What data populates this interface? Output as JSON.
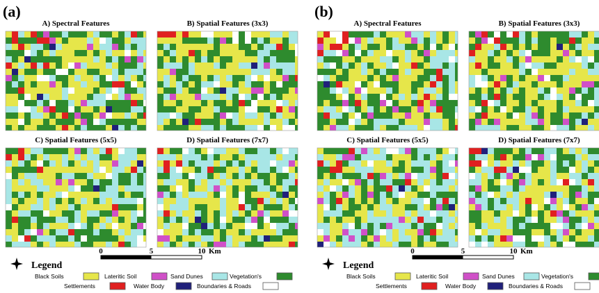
{
  "panels": [
    {
      "label": "(a)",
      "maps": [
        {
          "title": "A) Spectral Features"
        },
        {
          "title": "B) Spatial Features (3x3)"
        },
        {
          "title": "C) Spatial Features (5x5)"
        },
        {
          "title": "D) Spatial Features (7x7)"
        }
      ],
      "scale": {
        "ticks": [
          "0",
          "5",
          "10"
        ],
        "unit": "Km"
      },
      "legend": {
        "title": "Legend",
        "items": [
          {
            "label": "Black Soils",
            "color": "#e6e64a"
          },
          {
            "label": "Lateritic Soil",
            "color": "#d050c8"
          },
          {
            "label": "Sand Dunes",
            "color": "#a8e6e6"
          },
          {
            "label": "Vegetation's",
            "color": "#2e8b2e"
          },
          {
            "label": "Settlements",
            "color": "#e02020"
          },
          {
            "label": "Water Body",
            "color": "#20207a"
          },
          {
            "label": "Boundaries & Roads",
            "color": "#ffffff"
          }
        ]
      }
    },
    {
      "label": "(b)",
      "maps": [
        {
          "title": "A) Spectral Features"
        },
        {
          "title": "B) Spatial Features (3x3)"
        },
        {
          "title": "C) Spatial Features (5x5)"
        },
        {
          "title": "D) Spatial Features (7x7)"
        }
      ],
      "scale": {
        "ticks": [
          "0",
          "5",
          "10"
        ],
        "unit": "Km"
      },
      "legend": {
        "title": "Legend",
        "items": [
          {
            "label": "Black Soils",
            "color": "#e6e64a"
          },
          {
            "label": "Lateritic Soil",
            "color": "#d050c8"
          },
          {
            "label": "Sand Dunes",
            "color": "#a8e6e6"
          },
          {
            "label": "Vegetation's",
            "color": "#2e8b2e"
          },
          {
            "label": "Settlements",
            "color": "#e02020"
          },
          {
            "label": "Water Body",
            "color": "#20207a"
          },
          {
            "label": "Boundaries & Roads",
            "color": "#ffffff"
          }
        ]
      }
    }
  ]
}
